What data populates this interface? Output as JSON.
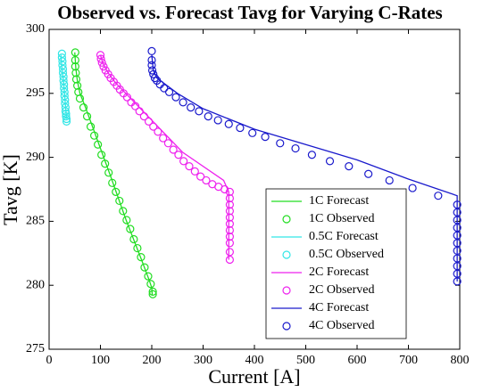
{
  "chart_data": {
    "type": "line",
    "title": "Observed vs. Forecast Tavg for Varying C-Rates",
    "xlabel": "Current [A]",
    "ylabel": "Tavg [K]",
    "xlim": [
      0,
      800
    ],
    "xticks": [
      0,
      100,
      200,
      300,
      400,
      500,
      600,
      700,
      800
    ],
    "ylim": [
      275,
      300
    ],
    "yticks": [
      275,
      280,
      285,
      290,
      295,
      300
    ],
    "legend": "lower right",
    "series": [
      {
        "name": "1C Forecast",
        "mode": "line",
        "color": "#22dd22",
        "x": [
          50,
          52,
          55,
          60,
          70,
          90,
          120,
          150,
          180,
          195,
          200,
          201
        ],
        "values": [
          298.2,
          297,
          296,
          295,
          294,
          291.8,
          288.5,
          285.1,
          282,
          280.4,
          279.8,
          279.2
        ]
      },
      {
        "name": "1C Observed",
        "mode": "markers",
        "color": "#22dd22",
        "x": [
          51,
          51,
          51,
          52,
          53,
          55,
          57,
          60,
          67,
          74,
          81,
          88,
          95,
          102,
          109,
          116,
          123,
          130,
          137,
          144,
          151,
          158,
          165,
          172,
          179,
          186,
          193,
          198,
          202,
          202
        ],
        "values": [
          298.2,
          297.6,
          297.1,
          296.6,
          296.1,
          295.6,
          295.1,
          294.6,
          293.9,
          293.2,
          292.4,
          291.7,
          291,
          290.2,
          289.5,
          288.8,
          288,
          287.3,
          286.6,
          285.8,
          285.1,
          284.4,
          283.6,
          282.9,
          282.2,
          281.4,
          280.7,
          280.1,
          279.5,
          279.3
        ]
      },
      {
        "name": "0.5C Forecast",
        "mode": "line",
        "color": "#33e6e6",
        "x": [
          23,
          25,
          28,
          30,
          33,
          34
        ],
        "values": [
          298,
          297,
          296,
          295,
          293.5,
          293
        ]
      },
      {
        "name": "0.5C Observed",
        "mode": "markers",
        "color": "#33e6e6",
        "x": [
          25,
          25,
          26,
          26,
          27,
          27,
          28,
          28,
          29,
          29,
          30,
          30,
          31,
          31,
          32,
          32,
          33,
          33,
          34,
          34
        ],
        "values": [
          298.1,
          297.8,
          297.5,
          297.2,
          296.9,
          296.6,
          296.3,
          296,
          295.7,
          295.4,
          295.1,
          294.8,
          294.5,
          294.2,
          293.9,
          293.6,
          293.4,
          293.2,
          293,
          292.8
        ]
      },
      {
        "name": "2C Forecast",
        "mode": "line",
        "color": "#ee22ee",
        "x": [
          100,
          105,
          115,
          130,
          200,
          260,
          340,
          350,
          350
        ],
        "values": [
          298,
          297.3,
          296.6,
          295.8,
          292.9,
          290.4,
          288.2,
          287.3,
          282
        ]
      },
      {
        "name": "2C Observed",
        "mode": "markers",
        "color": "#ee22ee",
        "x": [
          100,
          101,
          103,
          106,
          110,
          115,
          120,
          126,
          132,
          138,
          145,
          152,
          160,
          168,
          176,
          185,
          194,
          203,
          212,
          222,
          232,
          242,
          252,
          262,
          273,
          284,
          295,
          306,
          318,
          330,
          342,
          352,
          352,
          352,
          352,
          352,
          352,
          352,
          352,
          352,
          352,
          352
        ],
        "values": [
          298,
          297.7,
          297.4,
          297.1,
          296.8,
          296.5,
          296.2,
          295.9,
          295.6,
          295.3,
          295,
          294.7,
          294.3,
          294,
          293.6,
          293.2,
          292.8,
          292.4,
          292,
          291.5,
          291.1,
          290.6,
          290.2,
          289.7,
          289.3,
          288.9,
          288.5,
          288.2,
          287.9,
          287.7,
          287.5,
          287.3,
          286.8,
          286.3,
          285.8,
          285.3,
          284.8,
          284.3,
          283.8,
          283.3,
          282.6,
          282
        ]
      },
      {
        "name": "4C Forecast",
        "mode": "line",
        "color": "#1a1acc",
        "x": [
          200,
          203,
          210,
          250,
          300,
          400,
          500,
          600,
          700,
          795,
          795
        ],
        "values": [
          298,
          296.8,
          296.2,
          295,
          293.8,
          292.2,
          291,
          289.8,
          288.3,
          287,
          280.3
        ]
      },
      {
        "name": "4C Observed",
        "mode": "markers",
        "color": "#1a1acc",
        "x": [
          200,
          200,
          200,
          201,
          203,
          206,
          210,
          216,
          224,
          234,
          247,
          261,
          276,
          292,
          310,
          329,
          350,
          372,
          396,
          421,
          450,
          480,
          512,
          547,
          584,
          622,
          663,
          708,
          758,
          795,
          795,
          795,
          795,
          795,
          795,
          795,
          795,
          795,
          795,
          795
        ],
        "values": [
          298.3,
          297.6,
          297.2,
          296.8,
          296.5,
          296.2,
          296,
          295.7,
          295.4,
          295.1,
          294.7,
          294.3,
          293.9,
          293.6,
          293.2,
          292.9,
          292.6,
          292.3,
          291.9,
          291.6,
          291.1,
          290.7,
          290.2,
          289.7,
          289.3,
          288.7,
          288.2,
          287.6,
          287,
          286.3,
          285.7,
          285.1,
          284.5,
          283.9,
          283.3,
          282.7,
          282.1,
          281.5,
          280.9,
          280.3
        ]
      }
    ]
  }
}
